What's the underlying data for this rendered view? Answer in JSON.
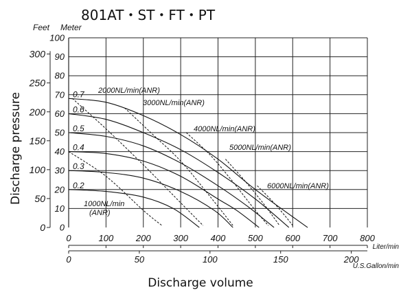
{
  "chart_data": {
    "type": "line",
    "title": "801AT・ST・FT・PT",
    "xlabel": "Discharge volume",
    "ylabel": "Discharge pressure",
    "grid": true,
    "x_axis_liter": {
      "unit": "Liter/min",
      "range": [
        0,
        800
      ],
      "ticks": [
        "0",
        "100",
        "200",
        "300",
        "400",
        "500",
        "600",
        "700",
        "800"
      ]
    },
    "x_axis_gallon": {
      "unit": "U.S.Gallon/min",
      "range": [
        0,
        211.3
      ],
      "ticks": [
        "0",
        "50",
        "100",
        "150",
        "200"
      ]
    },
    "y_axis_feet": {
      "unit": "Feet",
      "ticks": [
        "0",
        "50",
        "100",
        "150",
        "200",
        "250",
        "300"
      ]
    },
    "y_axis_meter": {
      "unit": "Meter",
      "range": [
        0,
        100
      ],
      "ticks": [
        "0",
        "10",
        "20",
        "30",
        "40",
        "50",
        "60",
        "70",
        "80",
        "90",
        "100"
      ]
    },
    "pressure_series": [
      {
        "name": "0.7",
        "x": [
          0,
          100,
          200,
          300,
          400,
          500,
          640
        ],
        "y": [
          68,
          66,
          59,
          49,
          36,
          20,
          0
        ]
      },
      {
        "name": "0.6",
        "x": [
          0,
          100,
          200,
          300,
          400,
          500,
          590
        ],
        "y": [
          60,
          57,
          50,
          41,
          29,
          15,
          0
        ]
      },
      {
        "name": "0.5",
        "x": [
          0,
          100,
          200,
          300,
          400,
          480,
          550
        ],
        "y": [
          50,
          48,
          43,
          34,
          22,
          11,
          0
        ]
      },
      {
        "name": "0.4",
        "x": [
          0,
          100,
          200,
          300,
          400,
          450,
          510
        ],
        "y": [
          40,
          39,
          35,
          27,
          15,
          9,
          0
        ]
      },
      {
        "name": "0.3",
        "x": [
          0,
          100,
          200,
          300,
          390,
          440
        ],
        "y": [
          30,
          29,
          26,
          19,
          9,
          0
        ]
      },
      {
        "name": "0.2",
        "x": [
          0,
          100,
          200,
          280,
          350
        ],
        "y": [
          20,
          19,
          16,
          10,
          0
        ]
      }
    ],
    "air_series": [
      {
        "name": "1000NL/min(ANR)",
        "x": [
          0,
          100,
          200,
          250
        ],
        "y": [
          40,
          27,
          9,
          1
        ]
      },
      {
        "name": "2000NL/min(ANR)",
        "x": [
          10,
          100,
          200,
          300,
          360
        ],
        "y": [
          68,
          52,
          33,
          13,
          1
        ]
      },
      {
        "name": "3000NL/min(ANR)",
        "x": [
          150,
          220,
          300,
          380,
          440
        ],
        "y": [
          63,
          50,
          35,
          16,
          1
        ]
      },
      {
        "name": "4000NL/min(ANR)",
        "x": [
          315,
          380,
          440,
          500,
          535
        ],
        "y": [
          50,
          38,
          24,
          9,
          1
        ]
      },
      {
        "name": "5000NL/min(ANR)",
        "x": [
          420,
          470,
          520,
          565
        ],
        "y": [
          36,
          25,
          13,
          1
        ]
      },
      {
        "name": "6000NL/min(ANR)",
        "x": [
          505,
          545,
          580,
          600
        ],
        "y": [
          22,
          14,
          6,
          1
        ]
      }
    ]
  }
}
